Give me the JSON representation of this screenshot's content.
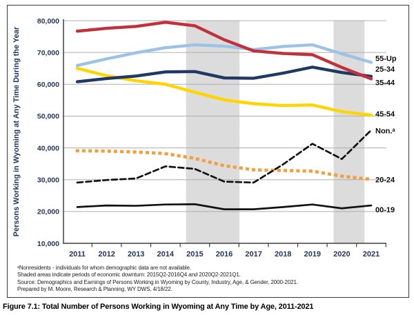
{
  "figure": {
    "caption": "Figure 7.1: Total Number of Persons Working in Wyoming at Any Time by Age, 2011-2021",
    "footnotes": [
      "ᵃNonresidents - individuals for whom demographic data are not available.",
      "Shaded areas indicate periods of economic downturn: 2015Q2-2016Q4 and 2020Q2-2021Q1.",
      "Source: Demographics and Earnings of Persons Working in Wyoming by County, Industry, Age, & Gender, 2000-2021.",
      "Prepared by M. Moore, Research & Planning, WY DWS, 4/18/22."
    ]
  },
  "chart_data": {
    "type": "line",
    "title": "",
    "xlabel": "",
    "ylabel": "Persons Working in Wyoming at Any Time During the Year",
    "years": [
      2011,
      2012,
      2013,
      2014,
      2015,
      2016,
      2017,
      2018,
      2019,
      2020,
      2021
    ],
    "ylim": [
      10000,
      80000
    ],
    "ytick_step": 10000,
    "yticks": [
      "10,000",
      "20,000",
      "30,000",
      "40,000",
      "50,000",
      "60,000",
      "70,000",
      "80,000"
    ],
    "grid": true,
    "legend_position": "right-of-line-ends",
    "series": [
      {
        "name": "55-Up",
        "color": "#9CC3E5",
        "line_style": "solid",
        "values": [
          65900,
          68000,
          69900,
          71500,
          72400,
          72000,
          70900,
          71900,
          72400,
          69600,
          66900
        ]
      },
      {
        "name": "45-54",
        "color": "#FFD400",
        "line_style": "solid",
        "values": [
          65000,
          62700,
          61100,
          60000,
          57500,
          55100,
          53900,
          53300,
          53500,
          51400,
          50300
        ]
      },
      {
        "name": "25-34",
        "color": "#1F3864",
        "line_style": "solid",
        "values": [
          60800,
          61800,
          62600,
          63900,
          64000,
          62000,
          61900,
          63500,
          65400,
          63700,
          62500
        ]
      },
      {
        "name": "35-44",
        "color": "#C0313C",
        "line_style": "solid",
        "values": [
          76700,
          77600,
          78200,
          79500,
          78400,
          74000,
          70500,
          69700,
          69300,
          65300,
          61700
        ]
      },
      {
        "name": "20-24",
        "color": "#F0A03C",
        "line_style": "dotted",
        "values": [
          39100,
          39000,
          38700,
          38200,
          36700,
          34400,
          33100,
          32900,
          32700,
          31100,
          30100
        ]
      },
      {
        "name": "Non.ᵃ",
        "color": "#111111",
        "line_style": "dashed",
        "values": [
          29100,
          29900,
          30400,
          34200,
          33400,
          29400,
          29100,
          34800,
          41300,
          36500,
          45600
        ]
      },
      {
        "name": "00-19",
        "color": "#111111",
        "line_style": "solid-thin",
        "values": [
          21400,
          21900,
          21800,
          22200,
          22300,
          20700,
          20700,
          21400,
          22200,
          21000,
          21900
        ]
      }
    ],
    "shaded_regions": [
      {
        "from": 2014.7,
        "to": 2016.52,
        "period": "2015Q2-2016Q4"
      },
      {
        "from": 2019.72,
        "to": 2020.77,
        "period": "2020Q2-2021Q1"
      }
    ],
    "style": {
      "grid_color": "#ADADAD",
      "band_color": "#DCDCDC",
      "axis_color": "#3F3F3F",
      "axis_text_color": "#22355A",
      "ylabel_color": "#1F3864",
      "legend_text_color": "#0D0D0D"
    }
  }
}
